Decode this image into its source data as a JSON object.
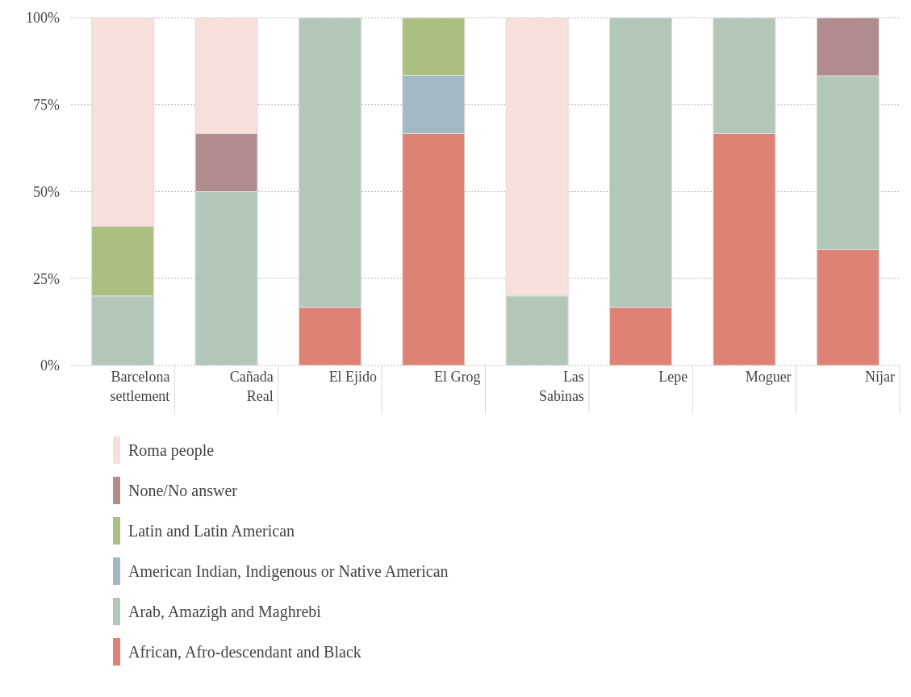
{
  "chart_data": {
    "type": "bar",
    "stacked": true,
    "categories": [
      "Barcelona settlement",
      "Cañada Real",
      "El Ejido",
      "El Grog",
      "Las Sabinas",
      "Lepe",
      "Moguer",
      "Níjar"
    ],
    "series": [
      {
        "name": "African, Afro-descendant and Black",
        "color": "#de8274",
        "values": [
          0,
          0,
          16.7,
          66.7,
          0,
          16.7,
          66.7,
          33.3
        ]
      },
      {
        "name": "Arab, Amazigh and Maghrebi",
        "color": "#b2c7b8",
        "values": [
          20,
          50,
          83.3,
          0,
          20,
          83.3,
          33.3,
          50
        ]
      },
      {
        "name": "American Indian, Indigenous or Native American",
        "color": "#a2b9c3",
        "values": [
          0,
          0,
          0,
          16.7,
          0,
          0,
          0,
          0
        ]
      },
      {
        "name": "Latin and Latin American",
        "color": "#abbf80",
        "values": [
          20,
          0,
          0,
          16.6,
          0,
          0,
          0,
          0
        ]
      },
      {
        "name": "None/No answer",
        "color": "#b28b8e",
        "values": [
          0,
          16.7,
          0,
          0,
          0,
          0,
          0,
          16.7
        ]
      },
      {
        "name": "Roma people",
        "color": "#f8e0da",
        "values": [
          60,
          33.3,
          0,
          0,
          80,
          0,
          0,
          0
        ]
      }
    ],
    "ylim": [
      0,
      100
    ],
    "yticks": [
      {
        "value": 0,
        "label": "0%"
      },
      {
        "value": 25,
        "label": "25%"
      },
      {
        "value": 50,
        "label": "50%"
      },
      {
        "value": 75,
        "label": "75%"
      },
      {
        "value": 100,
        "label": "100%"
      }
    ],
    "grid": "y",
    "legend": "bottom"
  }
}
